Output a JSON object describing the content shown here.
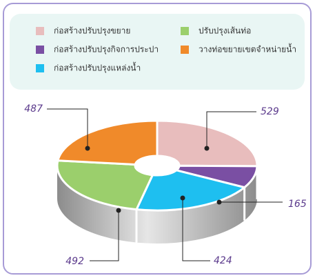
{
  "chart_data": {
    "type": "pie",
    "categories": [
      "ก่อสร้างปรับปรุงขยาย",
      "ก่อสร้างปรับปรุงกิจการประปา",
      "ก่อสร้างปรับปรุงแหล่งน้ำ",
      "ปรับปรุงเส้นท่อ",
      "วางท่อขยายเขตจำหน่ายน้ำ"
    ],
    "values": [
      529,
      165,
      424,
      492,
      487
    ],
    "colors": [
      "#e8bdbd",
      "#7a4fa3",
      "#1ebff0",
      "#9bcf6c",
      "#f08a2a"
    ]
  }
}
